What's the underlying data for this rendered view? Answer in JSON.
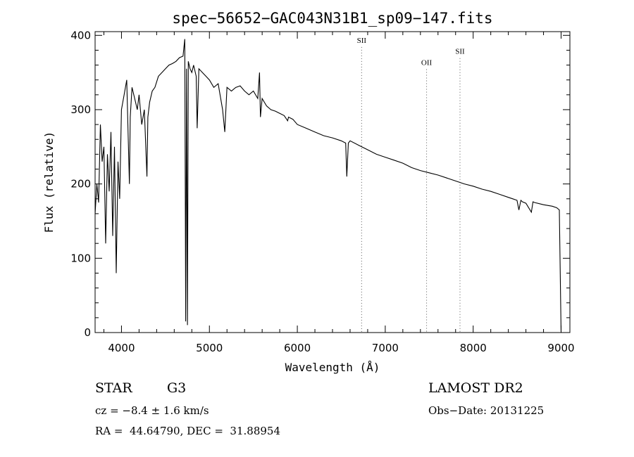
{
  "chart_data": {
    "type": "line",
    "title": "spec−56652−GAC043N31B1_sp09−147.fits",
    "xlabel": "Wavelength (Å)",
    "ylabel": "Flux (relative)",
    "xlim": [
      3700,
      9100
    ],
    "ylim": [
      0,
      405
    ],
    "x_ticks": [
      4000,
      5000,
      6000,
      7000,
      8000,
      9000
    ],
    "y_ticks": [
      0,
      100,
      200,
      300,
      400
    ],
    "grid": false,
    "series": [
      {
        "x": [
          3700,
          3720,
          3740,
          3760,
          3780,
          3800,
          3820,
          3840,
          3860,
          3880,
          3900,
          3920,
          3940,
          3960,
          3980,
          4000,
          4030,
          4060,
          4090,
          4100,
          4120,
          4150,
          4180,
          4200,
          4230,
          4260,
          4290,
          4300,
          4320,
          4350,
          4380,
          4420,
          4460,
          4500,
          4540,
          4580,
          4620,
          4660,
          4700,
          4720,
          4730,
          4740,
          4750,
          4760,
          4780,
          4800,
          4820,
          4850,
          4861,
          4880,
          4920,
          4960,
          5000,
          5050,
          5100,
          5150,
          5175,
          5200,
          5250,
          5300,
          5350,
          5400,
          5450,
          5500,
          5550,
          5570,
          5580,
          5600,
          5650,
          5700,
          5750,
          5800,
          5850,
          5890,
          5900,
          5950,
          6000,
          6100,
          6200,
          6300,
          6400,
          6500,
          6550,
          6563,
          6580,
          6600,
          6700,
          6800,
          6900,
          7000,
          7100,
          7200,
          7300,
          7400,
          7500,
          7600,
          7700,
          7800,
          7900,
          8000,
          8100,
          8200,
          8300,
          8400,
          8450,
          8498,
          8520,
          8542,
          8560,
          8600,
          8662,
          8680,
          8700,
          8800,
          8900,
          8950,
          8980,
          9000
        ],
        "values": [
          160,
          200,
          175,
          280,
          230,
          250,
          120,
          240,
          190,
          270,
          130,
          250,
          80,
          230,
          180,
          300,
          320,
          340,
          200,
          290,
          330,
          315,
          300,
          320,
          280,
          300,
          210,
          290,
          310,
          325,
          330,
          345,
          350,
          355,
          360,
          362,
          365,
          370,
          372,
          395,
          15,
          355,
          10,
          365,
          355,
          350,
          360,
          345,
          275,
          355,
          350,
          345,
          340,
          330,
          335,
          300,
          270,
          330,
          325,
          330,
          332,
          325,
          320,
          325,
          315,
          350,
          290,
          315,
          305,
          300,
          298,
          295,
          292,
          285,
          290,
          287,
          280,
          275,
          270,
          265,
          262,
          258,
          255,
          210,
          255,
          258,
          252,
          246,
          240,
          236,
          232,
          228,
          222,
          218,
          215,
          212,
          208,
          204,
          200,
          197,
          193,
          190,
          186,
          182,
          180,
          178,
          165,
          178,
          176,
          174,
          162,
          176,
          175,
          172,
          170,
          168,
          165,
          0
        ],
        "line_color": "#000000"
      }
    ],
    "annotations": [
      {
        "label": "SII",
        "wavelength": 6731,
        "label_y": 390
      },
      {
        "label": "OII",
        "wavelength": 7470,
        "label_y": 360
      },
      {
        "label": "SII",
        "wavelength": 7850,
        "label_y": 375
      }
    ]
  },
  "info": {
    "class": "STAR",
    "subclass": "G3",
    "cz": "cz = −8.4 ± 1.6 km/s",
    "coords": "RA =  44.64790, DEC =  31.88954",
    "survey": "LAMOST DR2",
    "obs_date": "Obs−Date: 20131225"
  }
}
